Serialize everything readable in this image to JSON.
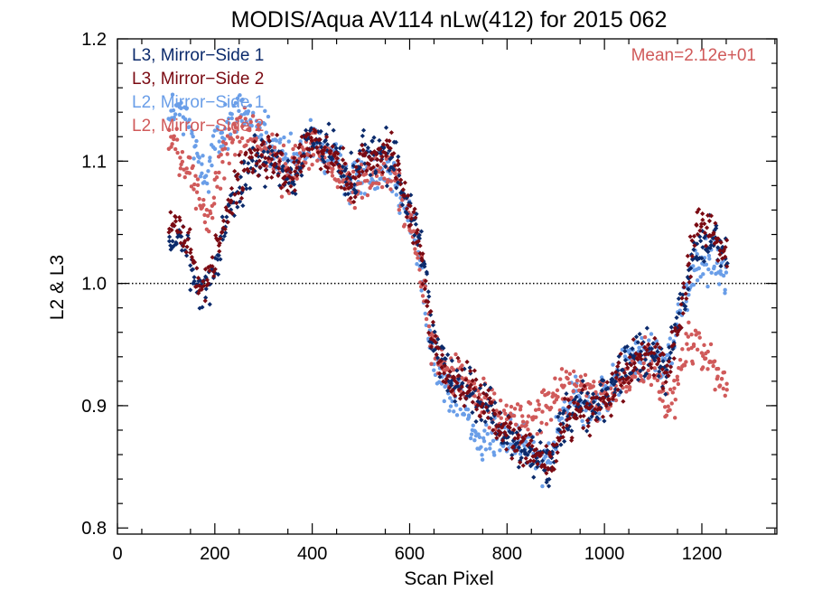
{
  "chart_data": {
    "type": "scatter",
    "title": "MODIS/Aqua AV114 nLw(412) for 2015 062",
    "xlabel": "Scan Pixel",
    "ylabel": "L2 & L3",
    "xlim": [
      0,
      1354
    ],
    "ylim": [
      0.795,
      1.2
    ],
    "x_ticks": [
      "0",
      "200",
      "400",
      "600",
      "800",
      "1000",
      "1200"
    ],
    "y_ticks": [
      "0.8",
      "0.9",
      "1.0",
      "1.1",
      "1.2"
    ],
    "reference_line": 1.0,
    "annotation": "Mean=2.12e+01",
    "annotation_color": "#d05a5a",
    "legend_position": "top-left",
    "series": [
      {
        "name": "L3, Mirror−Side 1",
        "color": "#0b2a6b",
        "marker": "diamond",
        "profile": [
          [
            105,
            1.025
          ],
          [
            125,
            1.042
          ],
          [
            145,
            1.02
          ],
          [
            165,
            0.99
          ],
          [
            185,
            1.0
          ],
          [
            205,
            1.025
          ],
          [
            225,
            1.06
          ],
          [
            245,
            1.075
          ],
          [
            265,
            1.09
          ],
          [
            285,
            1.103
          ],
          [
            305,
            1.1
          ],
          [
            325,
            1.103
          ],
          [
            345,
            1.085
          ],
          [
            365,
            1.087
          ],
          [
            385,
            1.115
          ],
          [
            405,
            1.12
          ],
          [
            425,
            1.11
          ],
          [
            445,
            1.11
          ],
          [
            465,
            1.09
          ],
          [
            485,
            1.083
          ],
          [
            505,
            1.11
          ],
          [
            525,
            1.1
          ],
          [
            545,
            1.105
          ],
          [
            565,
            1.1
          ],
          [
            585,
            1.075
          ],
          [
            605,
            1.055
          ],
          [
            625,
            1.025
          ],
          [
            645,
            0.96
          ],
          [
            665,
            0.933
          ],
          [
            685,
            0.925
          ],
          [
            705,
            0.922
          ],
          [
            725,
            0.91
          ],
          [
            745,
            0.905
          ],
          [
            765,
            0.9
          ],
          [
            785,
            0.88
          ],
          [
            805,
            0.873
          ],
          [
            825,
            0.865
          ],
          [
            845,
            0.86
          ],
          [
            865,
            0.86
          ],
          [
            885,
            0.85
          ],
          [
            905,
            0.878
          ],
          [
            925,
            0.895
          ],
          [
            945,
            0.902
          ],
          [
            965,
            0.9
          ],
          [
            985,
            0.902
          ],
          [
            1005,
            0.905
          ],
          [
            1025,
            0.92
          ],
          [
            1045,
            0.935
          ],
          [
            1065,
            0.94
          ],
          [
            1085,
            0.94
          ],
          [
            1105,
            0.935
          ],
          [
            1125,
            0.925
          ],
          [
            1145,
            0.965
          ],
          [
            1165,
            1.0
          ],
          [
            1185,
            1.02
          ],
          [
            1205,
            1.03
          ],
          [
            1225,
            1.035
          ],
          [
            1245,
            1.025
          ]
        ]
      },
      {
        "name": "L3, Mirror−Side 2",
        "color": "#7a0a12",
        "marker": "diamond",
        "profile": [
          [
            105,
            1.035
          ],
          [
            125,
            1.05
          ],
          [
            145,
            1.028
          ],
          [
            165,
            1.0
          ],
          [
            185,
            1.005
          ],
          [
            205,
            1.03
          ],
          [
            225,
            1.065
          ],
          [
            245,
            1.08
          ],
          [
            265,
            1.095
          ],
          [
            285,
            1.105
          ],
          [
            305,
            1.1
          ],
          [
            325,
            1.1
          ],
          [
            345,
            1.083
          ],
          [
            365,
            1.09
          ],
          [
            385,
            1.118
          ],
          [
            405,
            1.12
          ],
          [
            425,
            1.108
          ],
          [
            445,
            1.105
          ],
          [
            465,
            1.088
          ],
          [
            485,
            1.08
          ],
          [
            505,
            1.1
          ],
          [
            525,
            1.098
          ],
          [
            545,
            1.11
          ],
          [
            565,
            1.1
          ],
          [
            585,
            1.078
          ],
          [
            605,
            1.05
          ],
          [
            625,
            1.018
          ],
          [
            645,
            0.955
          ],
          [
            665,
            0.93
          ],
          [
            685,
            0.925
          ],
          [
            705,
            0.92
          ],
          [
            725,
            0.912
          ],
          [
            745,
            0.905
          ],
          [
            765,
            0.898
          ],
          [
            785,
            0.882
          ],
          [
            805,
            0.872
          ],
          [
            825,
            0.865
          ],
          [
            845,
            0.862
          ],
          [
            865,
            0.858
          ],
          [
            885,
            0.855
          ],
          [
            905,
            0.875
          ],
          [
            925,
            0.89
          ],
          [
            945,
            0.9
          ],
          [
            965,
            0.898
          ],
          [
            985,
            0.9
          ],
          [
            1005,
            0.902
          ],
          [
            1025,
            0.92
          ],
          [
            1045,
            0.93
          ],
          [
            1065,
            0.935
          ],
          [
            1085,
            0.942
          ],
          [
            1105,
            0.935
          ],
          [
            1125,
            0.925
          ],
          [
            1145,
            0.955
          ],
          [
            1165,
            1.0
          ],
          [
            1185,
            1.045
          ],
          [
            1205,
            1.05
          ],
          [
            1225,
            1.04
          ],
          [
            1245,
            1.03
          ]
        ]
      },
      {
        "name": "L2, Mirror−Side 1",
        "color": "#6a9ee8",
        "marker": "dot",
        "profile": [
          [
            105,
            1.14
          ],
          [
            125,
            1.14
          ],
          [
            145,
            1.13
          ],
          [
            165,
            1.1
          ],
          [
            185,
            1.09
          ],
          [
            205,
            1.12
          ],
          [
            225,
            1.13
          ],
          [
            245,
            1.14
          ],
          [
            265,
            1.14
          ],
          [
            285,
            1.13
          ],
          [
            305,
            1.12
          ],
          [
            325,
            1.105
          ],
          [
            345,
            1.1
          ],
          [
            365,
            1.1
          ],
          [
            385,
            1.11
          ],
          [
            405,
            1.115
          ],
          [
            425,
            1.105
          ],
          [
            445,
            1.1
          ],
          [
            465,
            1.09
          ],
          [
            485,
            1.08
          ],
          [
            505,
            1.095
          ],
          [
            525,
            1.09
          ],
          [
            545,
            1.095
          ],
          [
            565,
            1.09
          ],
          [
            585,
            1.07
          ],
          [
            605,
            1.045
          ],
          [
            625,
            1.0
          ],
          [
            645,
            0.94
          ],
          [
            665,
            0.92
          ],
          [
            685,
            0.91
          ],
          [
            705,
            0.905
          ],
          [
            725,
            0.88
          ],
          [
            745,
            0.865
          ],
          [
            765,
            0.875
          ],
          [
            785,
            0.875
          ],
          [
            805,
            0.87
          ],
          [
            825,
            0.868
          ],
          [
            845,
            0.87
          ],
          [
            865,
            0.86
          ],
          [
            885,
            0.855
          ],
          [
            905,
            0.888
          ],
          [
            925,
            0.9
          ],
          [
            945,
            0.905
          ],
          [
            965,
            0.9
          ],
          [
            985,
            0.9
          ],
          [
            1005,
            0.91
          ],
          [
            1025,
            0.925
          ],
          [
            1045,
            0.935
          ],
          [
            1065,
            0.94
          ],
          [
            1085,
            0.945
          ],
          [
            1105,
            0.94
          ],
          [
            1125,
            0.93
          ],
          [
            1145,
            0.96
          ],
          [
            1165,
            0.99
          ],
          [
            1185,
            1.01
          ],
          [
            1205,
            1.02
          ],
          [
            1225,
            1.02
          ],
          [
            1245,
            1.005
          ]
        ]
      },
      {
        "name": "L2, Mirror−Side 2",
        "color": "#d05a5a",
        "marker": "dot",
        "profile": [
          [
            105,
            1.12
          ],
          [
            125,
            1.11
          ],
          [
            145,
            1.095
          ],
          [
            165,
            1.07
          ],
          [
            185,
            1.05
          ],
          [
            205,
            1.09
          ],
          [
            225,
            1.115
          ],
          [
            245,
            1.125
          ],
          [
            265,
            1.125
          ],
          [
            285,
            1.12
          ],
          [
            305,
            1.11
          ],
          [
            325,
            1.1
          ],
          [
            345,
            1.09
          ],
          [
            365,
            1.095
          ],
          [
            385,
            1.11
          ],
          [
            405,
            1.115
          ],
          [
            425,
            1.1
          ],
          [
            445,
            1.095
          ],
          [
            465,
            1.085
          ],
          [
            485,
            1.075
          ],
          [
            505,
            1.09
          ],
          [
            525,
            1.085
          ],
          [
            545,
            1.09
          ],
          [
            565,
            1.09
          ],
          [
            585,
            1.07
          ],
          [
            605,
            1.04
          ],
          [
            625,
            1.0
          ],
          [
            645,
            0.95
          ],
          [
            665,
            0.93
          ],
          [
            685,
            0.925
          ],
          [
            705,
            0.92
          ],
          [
            725,
            0.91
          ],
          [
            745,
            0.905
          ],
          [
            765,
            0.9
          ],
          [
            785,
            0.895
          ],
          [
            805,
            0.89
          ],
          [
            825,
            0.885
          ],
          [
            845,
            0.89
          ],
          [
            865,
            0.895
          ],
          [
            885,
            0.9
          ],
          [
            905,
            0.91
          ],
          [
            925,
            0.915
          ],
          [
            945,
            0.915
          ],
          [
            965,
            0.91
          ],
          [
            985,
            0.905
          ],
          [
            1005,
            0.905
          ],
          [
            1025,
            0.915
          ],
          [
            1045,
            0.925
          ],
          [
            1065,
            0.93
          ],
          [
            1085,
            0.935
          ],
          [
            1105,
            0.925
          ],
          [
            1125,
            0.905
          ],
          [
            1145,
            0.905
          ],
          [
            1165,
            0.95
          ],
          [
            1185,
            0.955
          ],
          [
            1205,
            0.94
          ],
          [
            1225,
            0.93
          ],
          [
            1245,
            0.915
          ]
        ]
      }
    ]
  }
}
